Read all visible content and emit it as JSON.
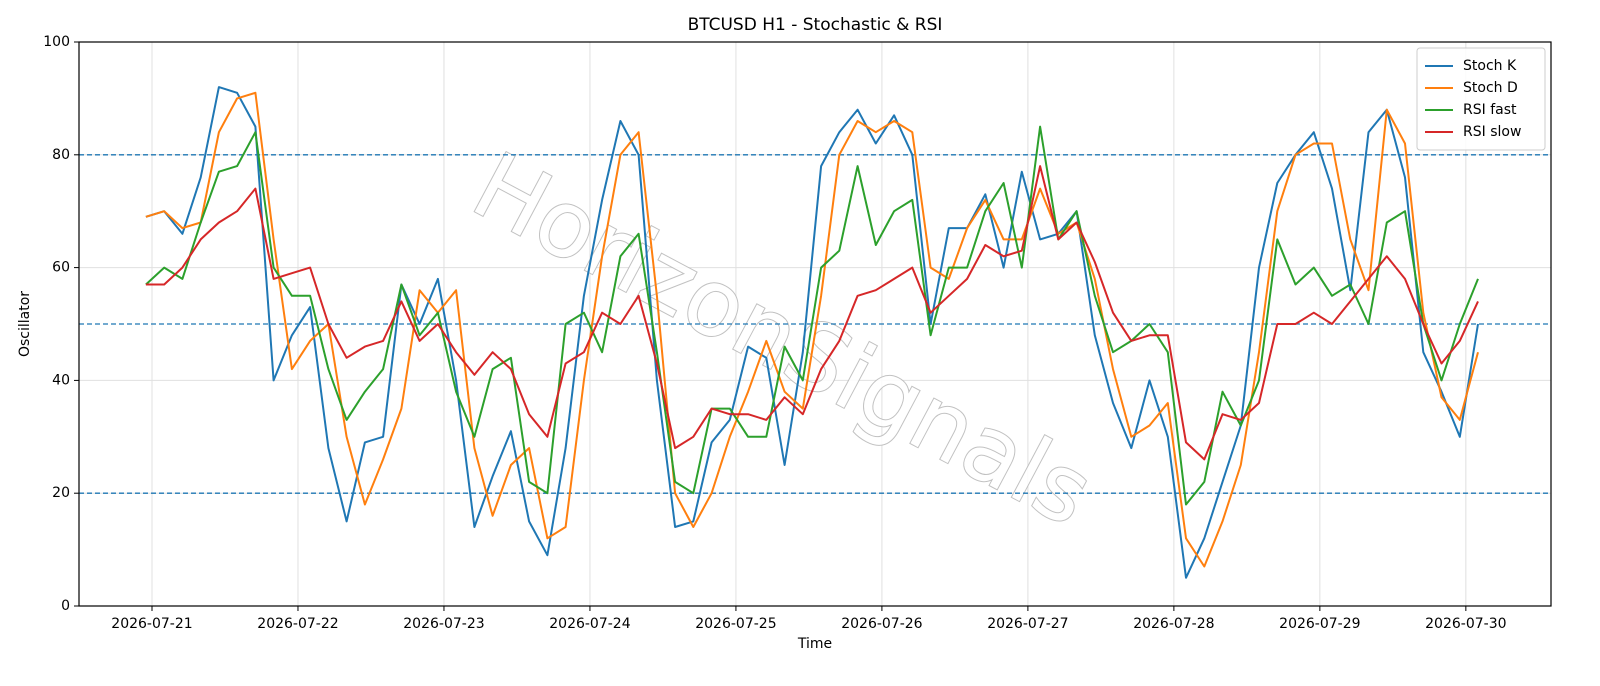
{
  "chart_data": {
    "type": "line",
    "title": "BTCUSD H1 - Stochastic & RSI",
    "xlabel": "Time",
    "ylabel": "Oscillator",
    "watermark": "HorizonSignals",
    "x": [
      "2026-07-20T23:00",
      "2026-07-21T02:00",
      "2026-07-21T05:00",
      "2026-07-21T08:00",
      "2026-07-21T11:00",
      "2026-07-21T14:00",
      "2026-07-21T17:00",
      "2026-07-21T20:00",
      "2026-07-21T23:00",
      "2026-07-22T02:00",
      "2026-07-22T05:00",
      "2026-07-22T08:00",
      "2026-07-22T11:00",
      "2026-07-22T14:00",
      "2026-07-22T17:00",
      "2026-07-22T20:00",
      "2026-07-22T23:00",
      "2026-07-23T02:00",
      "2026-07-23T05:00",
      "2026-07-23T08:00",
      "2026-07-23T11:00",
      "2026-07-23T14:00",
      "2026-07-23T17:00",
      "2026-07-23T20:00",
      "2026-07-23T23:00",
      "2026-07-24T02:00",
      "2026-07-24T05:00",
      "2026-07-24T08:00",
      "2026-07-24T11:00",
      "2026-07-24T14:00",
      "2026-07-24T17:00",
      "2026-07-24T20:00",
      "2026-07-24T23:00",
      "2026-07-25T02:00",
      "2026-07-25T05:00",
      "2026-07-25T08:00",
      "2026-07-25T11:00",
      "2026-07-25T14:00",
      "2026-07-25T17:00",
      "2026-07-25T20:00",
      "2026-07-25T23:00",
      "2026-07-26T02:00",
      "2026-07-26T05:00",
      "2026-07-26T08:00",
      "2026-07-26T11:00",
      "2026-07-26T14:00",
      "2026-07-26T17:00",
      "2026-07-26T20:00",
      "2026-07-26T23:00",
      "2026-07-27T02:00",
      "2026-07-27T05:00",
      "2026-07-27T08:00",
      "2026-07-27T11:00",
      "2026-07-27T14:00",
      "2026-07-27T17:00",
      "2026-07-27T20:00",
      "2026-07-27T23:00",
      "2026-07-28T02:00",
      "2026-07-28T05:00",
      "2026-07-28T08:00",
      "2026-07-28T11:00",
      "2026-07-28T14:00",
      "2026-07-28T17:00",
      "2026-07-28T20:00",
      "2026-07-28T23:00",
      "2026-07-29T02:00",
      "2026-07-29T05:00",
      "2026-07-29T08:00",
      "2026-07-29T11:00",
      "2026-07-29T14:00",
      "2026-07-29T17:00",
      "2026-07-29T20:00",
      "2026-07-29T23:00",
      "2026-07-30T02:00"
    ],
    "series": [
      {
        "name": "Stoch K",
        "color": "#1f77b4",
        "values": [
          69,
          70,
          66,
          76,
          92,
          91,
          85,
          40,
          48,
          53,
          28,
          15,
          29,
          30,
          57,
          50,
          58,
          40,
          14,
          23,
          31,
          15,
          9,
          28,
          55,
          72,
          86,
          80,
          40,
          14,
          15,
          29,
          33,
          46,
          44,
          25,
          45,
          78,
          84,
          88,
          82,
          87,
          80,
          50,
          67,
          67,
          73,
          60,
          77,
          65,
          66,
          70,
          48,
          36,
          28,
          40,
          30,
          5,
          12,
          22,
          32,
          60,
          75,
          80,
          84,
          74,
          56,
          84,
          88,
          76,
          45,
          38,
          30,
          50
        ]
      },
      {
        "name": "Stoch D",
        "color": "#ff7f0e",
        "values": [
          69,
          70,
          67,
          68,
          84,
          90,
          91,
          65,
          42,
          47,
          50,
          30,
          18,
          26,
          35,
          56,
          52,
          56,
          28,
          16,
          25,
          28,
          12,
          14,
          40,
          62,
          80,
          84,
          55,
          20,
          14,
          20,
          30,
          38,
          47,
          38,
          35,
          55,
          80,
          86,
          84,
          86,
          84,
          60,
          58,
          67,
          72,
          65,
          65,
          74,
          66,
          68,
          58,
          42,
          30,
          32,
          36,
          12,
          7,
          15,
          25,
          45,
          70,
          80,
          82,
          82,
          65,
          56,
          88,
          82,
          52,
          37,
          33,
          45
        ]
      },
      {
        "name": "RSI fast",
        "color": "#2ca02c",
        "values": [
          57,
          60,
          58,
          68,
          77,
          78,
          84,
          60,
          55,
          55,
          42,
          33,
          38,
          42,
          57,
          48,
          52,
          38,
          30,
          42,
          44,
          22,
          20,
          50,
          52,
          45,
          62,
          66,
          45,
          22,
          20,
          35,
          35,
          30,
          30,
          46,
          40,
          60,
          63,
          78,
          64,
          70,
          72,
          48,
          60,
          60,
          70,
          75,
          60,
          85,
          65,
          70,
          55,
          45,
          47,
          50,
          45,
          18,
          22,
          38,
          32,
          40,
          65,
          57,
          60,
          55,
          57,
          50,
          68,
          70,
          50,
          40,
          50,
          58
        ]
      },
      {
        "name": "RSI slow",
        "color": "#d62728",
        "values": [
          57,
          57,
          60,
          65,
          68,
          70,
          74,
          58,
          59,
          60,
          50,
          44,
          46,
          47,
          54,
          47,
          50,
          45,
          41,
          45,
          42,
          34,
          30,
          43,
          45,
          52,
          50,
          55,
          43,
          28,
          30,
          35,
          34,
          34,
          33,
          37,
          34,
          42,
          47,
          55,
          56,
          58,
          60,
          52,
          55,
          58,
          64,
          62,
          63,
          78,
          65,
          68,
          61,
          52,
          47,
          48,
          48,
          29,
          26,
          34,
          33,
          36,
          50,
          50,
          52,
          50,
          54,
          58,
          62,
          58,
          50,
          43,
          47,
          54
        ]
      }
    ],
    "hlines": [
      20,
      50,
      80
    ],
    "hline_color": "#1f77b4",
    "xlim": [
      "2026-07-20T12:00",
      "2026-07-30T14:00"
    ],
    "xticks": [
      "2026-07-21",
      "2026-07-22",
      "2026-07-23",
      "2026-07-24",
      "2026-07-25",
      "2026-07-26",
      "2026-07-27",
      "2026-07-28",
      "2026-07-29",
      "2026-07-30"
    ],
    "ylim": [
      0,
      100
    ],
    "yticks": [
      0,
      20,
      40,
      60,
      80,
      100
    ],
    "grid": true,
    "legend": "upper right"
  }
}
